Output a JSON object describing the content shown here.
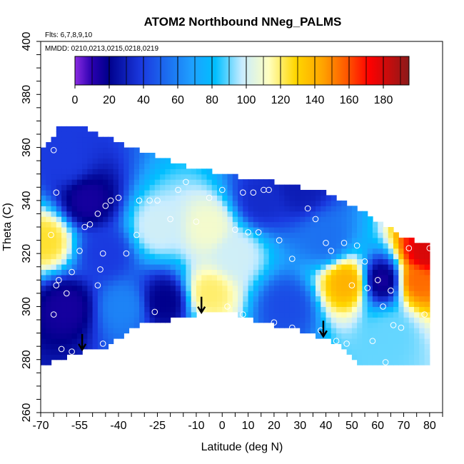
{
  "chart_data": {
    "type": "heatmap",
    "title": "ATOM2 Northbound NNeg_PALMS",
    "subtitle_flights": "Flts: 6,7,8,9,10",
    "subtitle_dates": "MMDD: 0210,0213,0215,0218,0219",
    "xlabel": "Latitude (deg N)",
    "ylabel": "Theta (C)",
    "xlim": [
      -70,
      85
    ],
    "ylim": [
      260,
      400
    ],
    "x_ticks": [
      -70,
      -55,
      -40,
      -25,
      -10,
      0,
      10,
      20,
      30,
      40,
      50,
      60,
      70,
      80
    ],
    "y_ticks": [
      260,
      280,
      300,
      320,
      340,
      360,
      380,
      400
    ],
    "colorbar": {
      "range": [
        0,
        195
      ],
      "ticks": [
        0,
        20,
        40,
        60,
        80,
        100,
        120,
        140,
        160,
        180
      ]
    },
    "arrows_at_lat": [
      -54,
      -8,
      39
    ],
    "ground_profile": [
      {
        "lat": -70,
        "theta": 278
      },
      {
        "lat": -55,
        "theta": 283
      },
      {
        "lat": -45,
        "theta": 285
      },
      {
        "lat": -32,
        "theta": 293
      },
      {
        "lat": -15,
        "theta": 296
      },
      {
        "lat": 2,
        "theta": 299
      },
      {
        "lat": 12,
        "theta": 295
      },
      {
        "lat": 30,
        "theta": 291
      },
      {
        "lat": 46,
        "theta": 286
      },
      {
        "lat": 52,
        "theta": 279
      },
      {
        "lat": 80,
        "theta": 279
      }
    ],
    "top_profile": [
      {
        "lat": -70,
        "theta": 358
      },
      {
        "lat": -62,
        "theta": 369
      },
      {
        "lat": -55,
        "theta": 368
      },
      {
        "lat": -45,
        "theta": 364
      },
      {
        "lat": -30,
        "theta": 358
      },
      {
        "lat": -15,
        "theta": 353
      },
      {
        "lat": 0,
        "theta": 350
      },
      {
        "lat": 20,
        "theta": 347
      },
      {
        "lat": 40,
        "theta": 343
      },
      {
        "lat": 55,
        "theta": 335
      },
      {
        "lat": 70,
        "theta": 326
      },
      {
        "lat": 80,
        "theta": 323
      }
    ],
    "field_features": [
      {
        "lat": -68,
        "theta": 325,
        "value": 125
      },
      {
        "lat": -60,
        "theta": 300,
        "value": 15
      },
      {
        "lat": -52,
        "theta": 340,
        "value": 15
      },
      {
        "lat": -45,
        "theta": 320,
        "value": 40
      },
      {
        "lat": -38,
        "theta": 300,
        "value": 60
      },
      {
        "lat": -25,
        "theta": 330,
        "value": 100
      },
      {
        "lat": -22,
        "theta": 302,
        "value": 20
      },
      {
        "lat": -5,
        "theta": 305,
        "value": 120
      },
      {
        "lat": -5,
        "theta": 330,
        "value": 110
      },
      {
        "lat": 5,
        "theta": 320,
        "value": 100
      },
      {
        "lat": 15,
        "theta": 340,
        "value": 35
      },
      {
        "lat": 25,
        "theta": 300,
        "value": 45
      },
      {
        "lat": 40,
        "theta": 325,
        "value": 55
      },
      {
        "lat": 48,
        "theta": 309,
        "value": 140
      },
      {
        "lat": 62,
        "theta": 310,
        "value": 15
      },
      {
        "lat": 75,
        "theta": 310,
        "value": 155
      },
      {
        "lat": 78,
        "theta": 320,
        "value": 180
      },
      {
        "lat": 65,
        "theta": 290,
        "value": 90
      },
      {
        "lat": -60,
        "theta": 355,
        "value": 40
      },
      {
        "lat": 30,
        "theta": 345,
        "value": 30
      }
    ],
    "sample_points": [
      {
        "lat": -65,
        "theta": 359
      },
      {
        "lat": -64,
        "theta": 343
      },
      {
        "lat": -66,
        "theta": 327
      },
      {
        "lat": -64,
        "theta": 308
      },
      {
        "lat": -65,
        "theta": 297
      },
      {
        "lat": -62,
        "theta": 284
      },
      {
        "lat": -60,
        "theta": 305
      },
      {
        "lat": -58,
        "theta": 313
      },
      {
        "lat": -55,
        "theta": 321
      },
      {
        "lat": -53,
        "theta": 330
      },
      {
        "lat": -51,
        "theta": 331
      },
      {
        "lat": -48,
        "theta": 335
      },
      {
        "lat": -45,
        "theta": 338
      },
      {
        "lat": -43,
        "theta": 340
      },
      {
        "lat": -40,
        "theta": 341
      },
      {
        "lat": -47,
        "theta": 314
      },
      {
        "lat": -46,
        "theta": 320
      },
      {
        "lat": -32,
        "theta": 340
      },
      {
        "lat": -28,
        "theta": 340
      },
      {
        "lat": -25,
        "theta": 340
      },
      {
        "lat": -20,
        "theta": 333
      },
      {
        "lat": -17,
        "theta": 344
      },
      {
        "lat": -14,
        "theta": 347
      },
      {
        "lat": -10,
        "theta": 332
      },
      {
        "lat": -33,
        "theta": 327
      },
      {
        "lat": -37,
        "theta": 320
      },
      {
        "lat": -26,
        "theta": 298
      },
      {
        "lat": -5,
        "theta": 341
      },
      {
        "lat": 0,
        "theta": 344
      },
      {
        "lat": 5,
        "theta": 329
      },
      {
        "lat": 8,
        "theta": 343
      },
      {
        "lat": 12,
        "theta": 343
      },
      {
        "lat": 16,
        "theta": 344
      },
      {
        "lat": 18,
        "theta": 344
      },
      {
        "lat": 10,
        "theta": 328
      },
      {
        "lat": 14,
        "theta": 328
      },
      {
        "lat": 2,
        "theta": 300
      },
      {
        "lat": 8,
        "theta": 297
      },
      {
        "lat": 20,
        "theta": 294
      },
      {
        "lat": 27,
        "theta": 292
      },
      {
        "lat": 33,
        "theta": 337
      },
      {
        "lat": 36,
        "theta": 333
      },
      {
        "lat": 40,
        "theta": 324
      },
      {
        "lat": 42,
        "theta": 321
      },
      {
        "lat": 47,
        "theta": 324
      },
      {
        "lat": 52,
        "theta": 323
      },
      {
        "lat": 55,
        "theta": 317
      },
      {
        "lat": 50,
        "theta": 308
      },
      {
        "lat": 56,
        "theta": 307
      },
      {
        "lat": 60,
        "theta": 310
      },
      {
        "lat": 62,
        "theta": 300
      },
      {
        "lat": 65,
        "theta": 306
      },
      {
        "lat": 66,
        "theta": 293
      },
      {
        "lat": 69,
        "theta": 292
      },
      {
        "lat": 72,
        "theta": 322
      },
      {
        "lat": 78,
        "theta": 297
      },
      {
        "lat": 80,
        "theta": 322
      },
      {
        "lat": 44,
        "theta": 287
      },
      {
        "lat": 48,
        "theta": 286
      },
      {
        "lat": 58,
        "theta": 287
      },
      {
        "lat": 63,
        "theta": 279
      },
      {
        "lat": 38,
        "theta": 291
      },
      {
        "lat": -58,
        "theta": 283
      },
      {
        "lat": -46,
        "theta": 286
      },
      {
        "lat": 27,
        "theta": 318
      },
      {
        "lat": 22,
        "theta": 325
      },
      {
        "lat": -63,
        "theta": 310
      },
      {
        "lat": -48,
        "theta": 308
      }
    ]
  }
}
